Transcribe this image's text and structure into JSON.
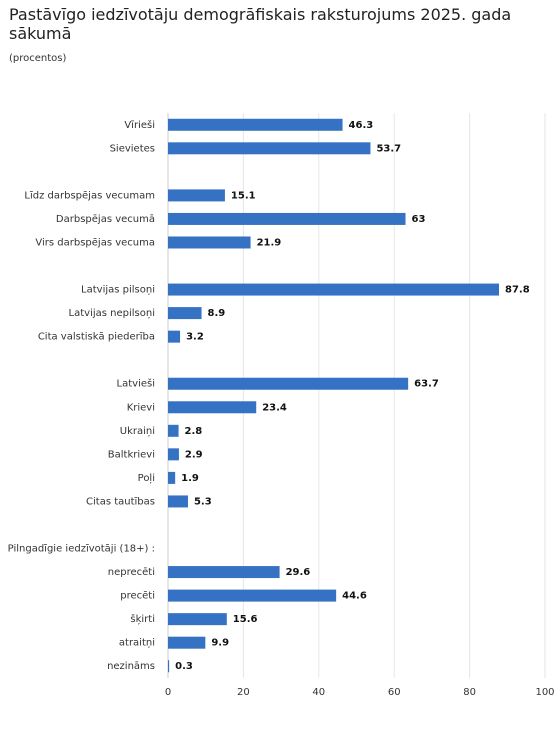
{
  "chart_data": {
    "type": "bar",
    "orientation": "horizontal",
    "title": "Pastāvīgo iedzīvotāju demogrāfiskais raksturojums 2025. gada sākumā",
    "subtitle": "(procentos)",
    "categories": [
      "Vīrieši",
      "Sievietes",
      null,
      "Līdz darbspējas vecumam",
      "Darbspējas vecumā",
      "Virs darbspējas vecuma",
      null,
      "Latvijas pilsoņi",
      "Latvijas nepilsoņi",
      "Cita valstiskā piederība",
      null,
      "Latvieši",
      "Krievi",
      "Ukraiņi",
      "Baltkrievi",
      "Poļi",
      "Citas tautības",
      null,
      "Pilngadīgie iedzīvotāji (18+) :",
      "neprecēti",
      "precēti",
      "šķirti",
      "atraitņi",
      "nezināms"
    ],
    "values": [
      46.3,
      53.7,
      null,
      15.1,
      63,
      21.9,
      null,
      87.8,
      8.9,
      3.2,
      null,
      63.7,
      23.4,
      2.8,
      2.9,
      1.9,
      5.3,
      null,
      null,
      29.6,
      44.6,
      15.6,
      9.9,
      0.3
    ],
    "color": "#3572c3",
    "xlim": [
      0,
      100
    ],
    "xticks": [
      0,
      20,
      40,
      60,
      80,
      100
    ],
    "grid": true
  }
}
